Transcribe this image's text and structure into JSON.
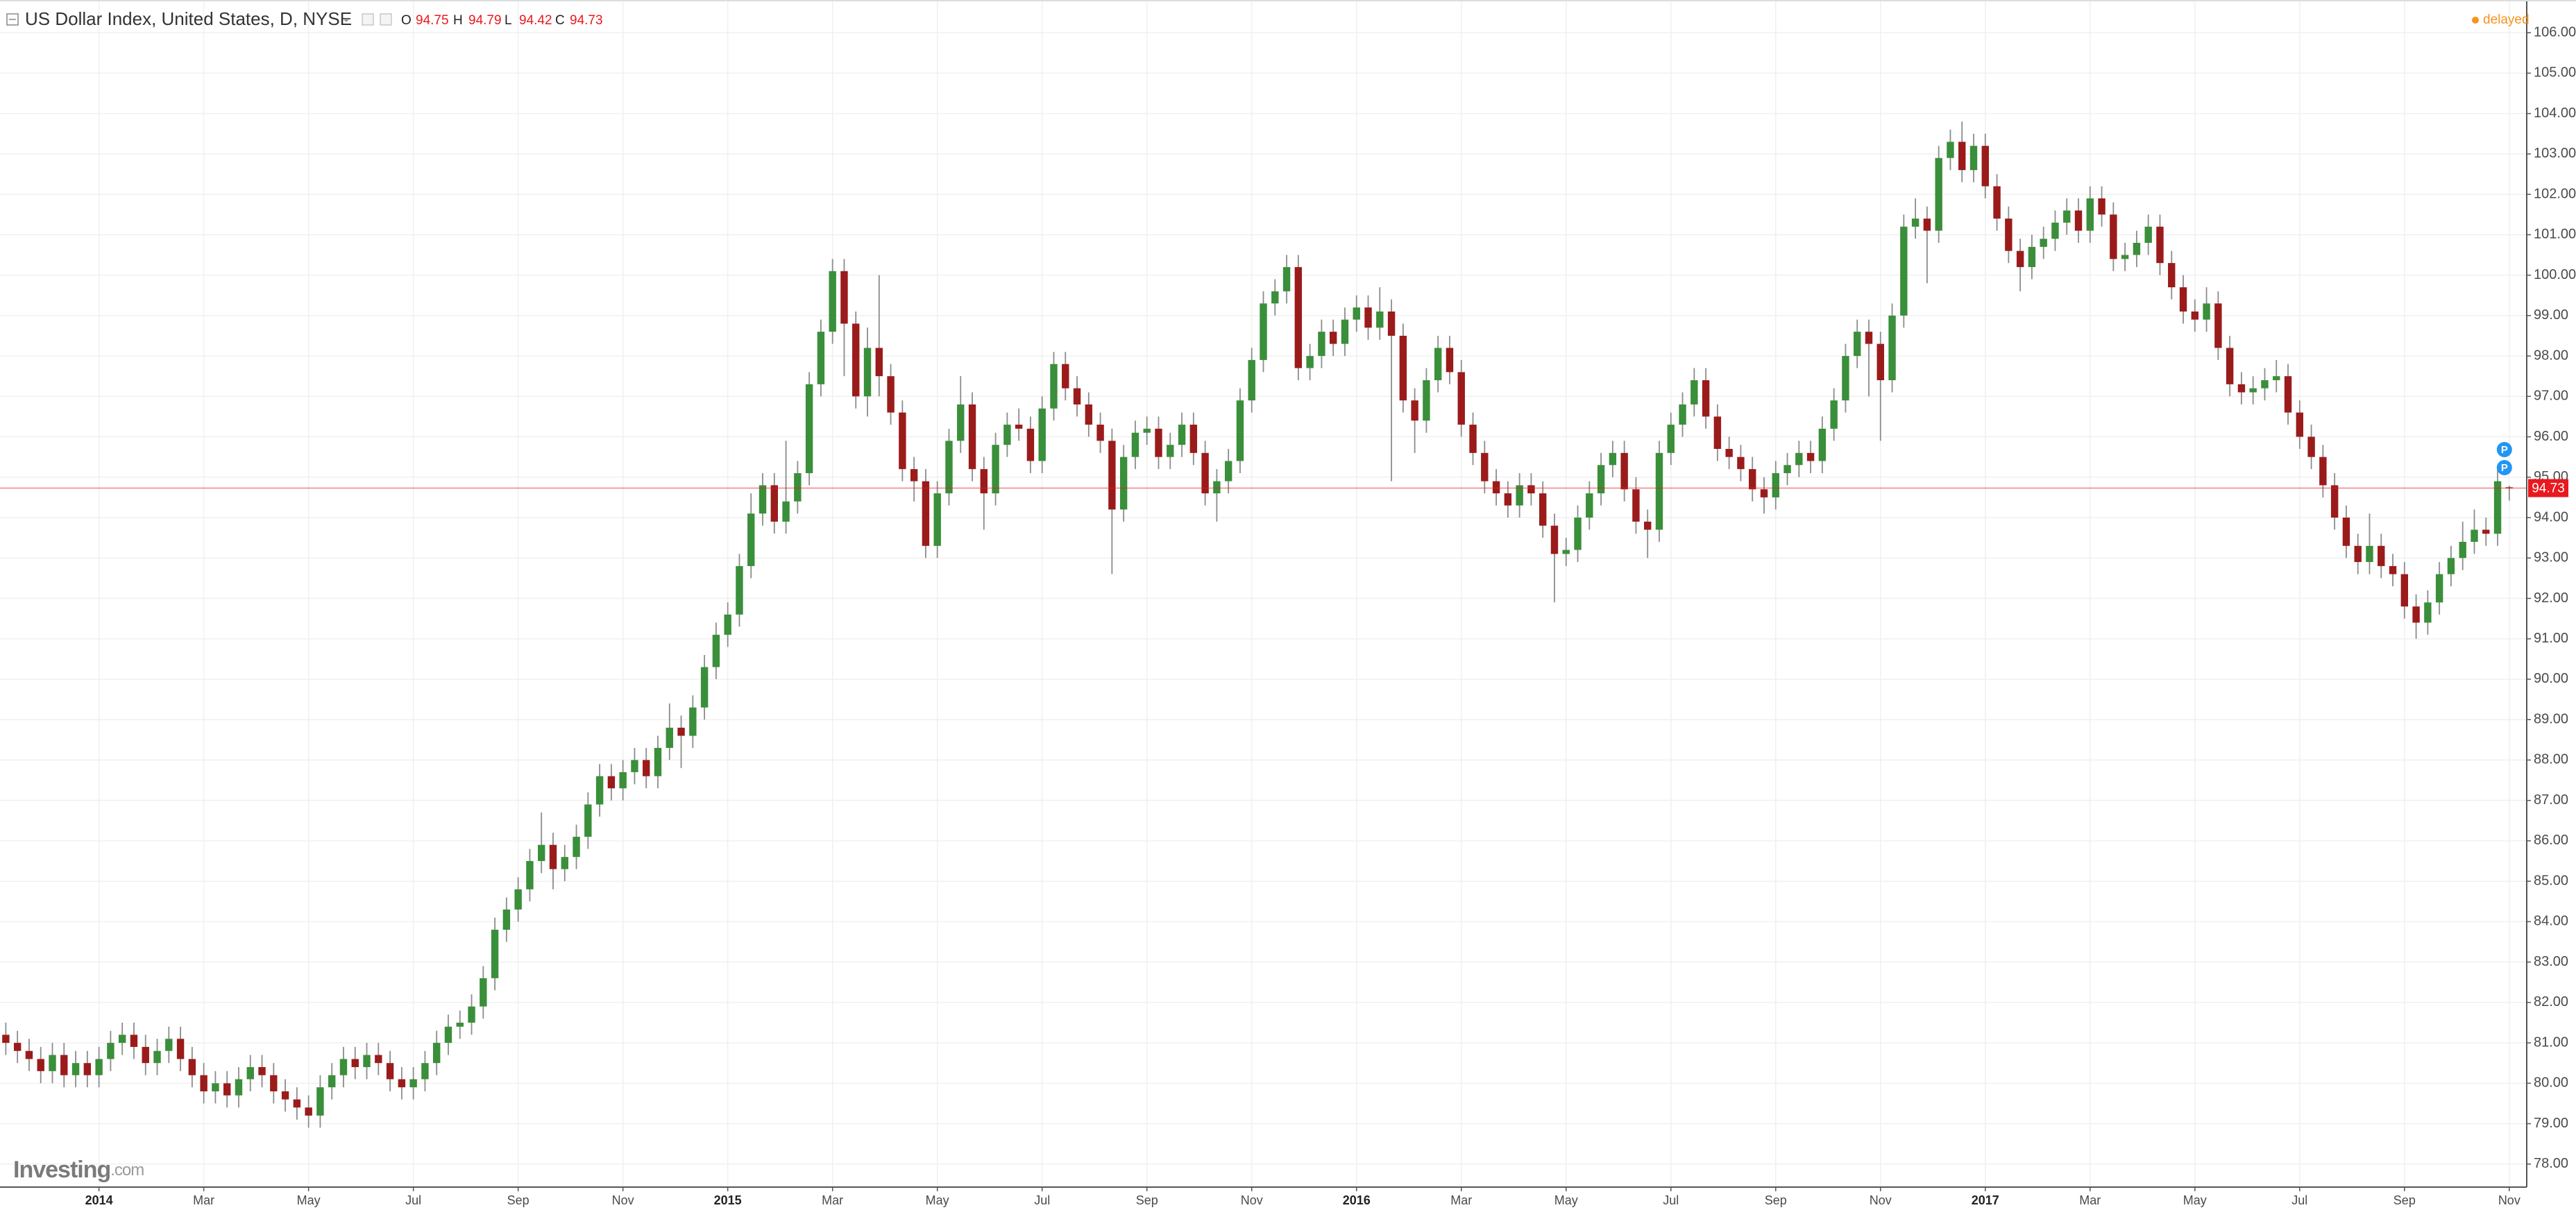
{
  "chart_data": {
    "type": "candlestick",
    "title": "US Dollar Index, United States, D, NYSE",
    "ohlc_labels": [
      "O",
      "H",
      "L",
      "C"
    ],
    "status": "delayed",
    "brand": "Investing",
    "brand_suffix": ".com",
    "event_markers": [
      "P",
      "P"
    ],
    "up_color": "#3a8f3a",
    "down_color": "#9b1b1b",
    "wick_color": "#8c8c8c",
    "last_price_color": "#e8191f",
    "grid": true,
    "ylim": [
      77.43,
      106.81
    ],
    "yticks": [
      {
        "value": 78,
        "label": "78.00"
      },
      {
        "value": 79,
        "label": "79.00"
      },
      {
        "value": 80,
        "label": "80.00"
      },
      {
        "value": 81,
        "label": "81.00"
      },
      {
        "value": 82,
        "label": "82.00"
      },
      {
        "value": 83,
        "label": "83.00"
      },
      {
        "value": 84,
        "label": "84.00"
      },
      {
        "value": 85,
        "label": "85.00"
      },
      {
        "value": 86,
        "label": "86.00"
      },
      {
        "value": 87,
        "label": "87.00"
      },
      {
        "value": 88,
        "label": "88.00"
      },
      {
        "value": 89,
        "label": "89.00"
      },
      {
        "value": 90,
        "label": "90.00"
      },
      {
        "value": 91,
        "label": "91.00"
      },
      {
        "value": 92,
        "label": "92.00"
      },
      {
        "value": 93,
        "label": "93.00"
      },
      {
        "value": 94,
        "label": "94.00"
      },
      {
        "value": 95,
        "label": "95.00"
      },
      {
        "value": 96,
        "label": "96.00"
      },
      {
        "value": 97,
        "label": "97.00"
      },
      {
        "value": 98,
        "label": "98.00"
      },
      {
        "value": 99,
        "label": "99.00"
      },
      {
        "value": 100,
        "label": "100.00"
      },
      {
        "value": 101,
        "label": "101.00"
      },
      {
        "value": 102,
        "label": "102.00"
      },
      {
        "value": 103,
        "label": "103.00"
      },
      {
        "value": 104,
        "label": "104.00"
      },
      {
        "value": 105,
        "label": "105.00"
      },
      {
        "value": 106,
        "label": "106.00"
      }
    ],
    "categories": [
      null,
      null,
      null,
      null,
      null,
      null,
      null,
      null,
      "2014",
      null,
      null,
      null,
      null,
      null,
      null,
      null,
      null,
      "Mar",
      null,
      null,
      null,
      null,
      null,
      null,
      null,
      null,
      "May",
      null,
      null,
      null,
      null,
      null,
      null,
      null,
      null,
      "Jul",
      null,
      null,
      null,
      null,
      null,
      null,
      null,
      null,
      "Sep",
      null,
      null,
      null,
      null,
      null,
      null,
      null,
      null,
      "Nov",
      null,
      null,
      null,
      null,
      null,
      null,
      null,
      null,
      "2015",
      null,
      null,
      null,
      null,
      null,
      null,
      null,
      null,
      "Mar",
      null,
      null,
      null,
      null,
      null,
      null,
      null,
      null,
      "May",
      null,
      null,
      null,
      null,
      null,
      null,
      null,
      null,
      "Jul",
      null,
      null,
      null,
      null,
      null,
      null,
      null,
      null,
      "Sep",
      null,
      null,
      null,
      null,
      null,
      null,
      null,
      null,
      "Nov",
      null,
      null,
      null,
      null,
      null,
      null,
      null,
      null,
      "2016",
      null,
      null,
      null,
      null,
      null,
      null,
      null,
      null,
      "Mar",
      null,
      null,
      null,
      null,
      null,
      null,
      null,
      null,
      "May",
      null,
      null,
      null,
      null,
      null,
      null,
      null,
      null,
      "Jul",
      null,
      null,
      null,
      null,
      null,
      null,
      null,
      null,
      "Sep",
      null,
      null,
      null,
      null,
      null,
      null,
      null,
      null,
      "Nov",
      null,
      null,
      null,
      null,
      null,
      null,
      null,
      null,
      "2017",
      null,
      null,
      null,
      null,
      null,
      null,
      null,
      null,
      "Mar",
      null,
      null,
      null,
      null,
      null,
      null,
      null,
      null,
      "May",
      null,
      null,
      null,
      null,
      null,
      null,
      null,
      null,
      "Jul",
      null,
      null,
      null,
      null,
      null,
      null,
      null,
      null,
      "Sep",
      null,
      null,
      null,
      null,
      null,
      null,
      null,
      null,
      "Nov"
    ],
    "open": [
      81.2,
      81.0,
      80.8,
      80.6,
      80.3,
      80.7,
      80.2,
      80.5,
      80.2,
      80.6,
      81.0,
      81.2,
      80.9,
      80.5,
      80.8,
      81.1,
      80.6,
      80.2,
      79.8,
      80.0,
      79.7,
      80.1,
      80.4,
      80.2,
      79.8,
      79.6,
      79.4,
      79.2,
      79.9,
      80.2,
      80.6,
      80.4,
      80.7,
      80.5,
      80.1,
      79.9,
      80.1,
      80.5,
      81.0,
      81.4,
      81.5,
      81.9,
      82.6,
      83.8,
      84.3,
      84.8,
      85.5,
      85.9,
      85.3,
      85.6,
      86.1,
      86.9,
      87.6,
      87.3,
      87.7,
      88.0,
      87.6,
      88.3,
      88.8,
      88.6,
      89.3,
      90.3,
      91.1,
      91.6,
      92.8,
      94.1,
      94.8,
      93.9,
      94.4,
      95.1,
      97.3,
      98.6,
      100.1,
      98.8,
      97.0,
      98.2,
      97.5,
      96.6,
      95.2,
      94.9,
      93.3,
      94.6,
      95.9,
      96.8,
      95.2,
      94.6,
      95.8,
      96.3,
      96.2,
      95.4,
      96.7,
      97.8,
      97.2,
      96.8,
      96.3,
      95.9,
      94.2,
      95.5,
      96.1,
      96.2,
      95.5,
      95.8,
      96.3,
      95.6,
      94.6,
      94.9,
      95.4,
      96.9,
      97.9,
      99.3,
      99.6,
      100.2,
      97.7,
      98.0,
      98.6,
      98.3,
      98.9,
      99.2,
      98.7,
      99.1,
      98.5,
      96.9,
      96.4,
      97.4,
      98.2,
      97.6,
      96.3,
      95.6,
      94.9,
      94.6,
      94.3,
      94.8,
      94.6,
      93.8,
      93.1,
      93.2,
      94.0,
      94.6,
      95.3,
      95.6,
      94.7,
      93.9,
      93.7,
      95.6,
      96.3,
      96.8,
      97.4,
      96.5,
      95.7,
      95.5,
      95.2,
      94.7,
      94.5,
      95.1,
      95.3,
      95.6,
      95.4,
      96.2,
      96.9,
      98.0,
      98.6,
      98.3,
      97.4,
      99.0,
      101.2,
      101.4,
      101.1,
      102.9,
      103.3,
      102.6,
      103.2,
      102.2,
      101.4,
      100.6,
      100.2,
      100.7,
      100.9,
      101.3,
      101.6,
      101.1,
      101.9,
      101.5,
      100.4,
      100.5,
      100.8,
      101.2,
      100.3,
      99.7,
      99.1,
      98.9,
      99.3,
      98.2,
      97.3,
      97.1,
      97.2,
      97.4,
      97.5,
      96.6,
      96.0,
      95.5,
      94.8,
      94.0,
      93.3,
      92.9,
      93.3,
      92.8,
      92.6,
      91.8,
      91.4,
      91.9,
      92.6,
      93.0,
      93.4,
      93.7,
      93.6,
      94.75
    ],
    "high": [
      81.5,
      81.3,
      81.1,
      80.9,
      81.0,
      81.0,
      80.8,
      80.8,
      80.9,
      81.3,
      81.5,
      81.5,
      81.2,
      81.1,
      81.4,
      81.4,
      80.9,
      80.5,
      80.3,
      80.3,
      80.4,
      80.7,
      80.7,
      80.5,
      80.1,
      79.9,
      79.7,
      80.2,
      80.5,
      80.9,
      80.9,
      81.0,
      81.0,
      80.8,
      80.4,
      80.4,
      80.8,
      81.3,
      81.7,
      81.8,
      82.2,
      82.9,
      84.1,
      84.6,
      85.1,
      85.8,
      86.7,
      86.2,
      85.9,
      86.4,
      87.2,
      87.9,
      87.9,
      88.0,
      88.3,
      88.3,
      88.6,
      89.4,
      89.1,
      89.6,
      90.6,
      91.4,
      91.9,
      93.1,
      94.6,
      95.1,
      95.1,
      95.9,
      95.4,
      97.6,
      98.9,
      100.4,
      100.4,
      99.1,
      98.7,
      100.0,
      97.8,
      96.9,
      95.5,
      95.2,
      94.9,
      96.2,
      97.5,
      97.1,
      95.5,
      96.1,
      96.6,
      96.7,
      96.5,
      97.0,
      98.1,
      98.1,
      97.5,
      97.1,
      96.6,
      96.2,
      95.8,
      96.4,
      96.5,
      96.5,
      96.1,
      96.6,
      96.6,
      95.9,
      95.2,
      95.7,
      97.2,
      98.2,
      99.6,
      99.9,
      100.5,
      100.5,
      98.3,
      98.9,
      98.9,
      99.2,
      99.5,
      99.5,
      99.7,
      99.4,
      98.8,
      97.2,
      97.7,
      98.5,
      98.5,
      97.9,
      96.6,
      95.9,
      95.2,
      94.9,
      95.1,
      95.1,
      94.9,
      94.1,
      93.5,
      94.3,
      94.9,
      95.6,
      95.9,
      95.9,
      95.0,
      94.2,
      95.9,
      96.6,
      97.1,
      97.7,
      97.7,
      96.8,
      96.0,
      95.8,
      95.5,
      95.0,
      95.4,
      95.6,
      95.9,
      95.9,
      96.5,
      97.2,
      98.3,
      98.9,
      98.9,
      98.6,
      99.3,
      101.5,
      101.9,
      101.7,
      103.2,
      103.6,
      103.8,
      103.5,
      103.5,
      102.5,
      101.7,
      100.9,
      101.0,
      101.2,
      101.6,
      101.9,
      101.9,
      102.2,
      102.2,
      101.8,
      100.8,
      101.1,
      101.5,
      101.5,
      100.6,
      100.0,
      99.4,
      99.7,
      99.6,
      98.5,
      97.6,
      97.5,
      97.7,
      97.9,
      97.8,
      96.9,
      96.3,
      95.8,
      95.1,
      94.3,
      93.6,
      94.1,
      93.6,
      93.1,
      92.9,
      92.1,
      92.2,
      92.9,
      93.3,
      93.9,
      94.2,
      94.0,
      95.2,
      94.79
    ],
    "low": [
      80.7,
      80.5,
      80.3,
      80.0,
      80.0,
      79.9,
      79.9,
      79.9,
      79.9,
      80.3,
      80.7,
      80.6,
      80.2,
      80.2,
      80.5,
      80.3,
      79.9,
      79.5,
      79.5,
      79.4,
      79.4,
      79.8,
      79.9,
      79.5,
      79.3,
      79.1,
      78.9,
      78.9,
      79.6,
      79.9,
      80.1,
      80.1,
      80.2,
      79.8,
      79.6,
      79.6,
      79.8,
      80.2,
      80.7,
      81.1,
      81.2,
      81.6,
      82.3,
      83.5,
      84.0,
      84.5,
      85.2,
      84.8,
      85.0,
      85.3,
      85.8,
      86.6,
      87.0,
      87.0,
      87.4,
      87.3,
      87.3,
      88.0,
      87.8,
      88.3,
      89.0,
      90.0,
      90.8,
      91.3,
      92.5,
      93.8,
      93.6,
      93.6,
      94.1,
      94.8,
      97.0,
      98.3,
      97.5,
      96.7,
      96.5,
      97.0,
      96.3,
      94.9,
      94.4,
      93.0,
      93.0,
      94.3,
      95.6,
      94.9,
      93.7,
      94.3,
      95.5,
      95.9,
      95.1,
      95.1,
      96.4,
      96.9,
      96.5,
      96.0,
      95.6,
      92.6,
      93.9,
      95.2,
      95.8,
      95.2,
      95.2,
      95.5,
      95.3,
      94.3,
      93.9,
      94.6,
      95.1,
      96.6,
      97.6,
      99.0,
      99.3,
      97.4,
      97.4,
      97.7,
      98.0,
      98.0,
      98.6,
      98.4,
      98.4,
      94.9,
      96.6,
      95.6,
      96.1,
      97.1,
      97.3,
      96.0,
      95.3,
      94.6,
      94.3,
      94.0,
      94.0,
      94.3,
      93.5,
      91.9,
      92.8,
      92.9,
      93.7,
      94.3,
      95.0,
      94.4,
      93.6,
      93.0,
      93.4,
      95.3,
      96.0,
      96.5,
      96.2,
      95.4,
      95.2,
      94.9,
      94.4,
      94.1,
      94.2,
      94.8,
      95.0,
      95.1,
      95.1,
      95.9,
      96.6,
      97.7,
      97.0,
      95.9,
      97.1,
      98.7,
      100.9,
      99.8,
      100.8,
      102.6,
      102.3,
      102.3,
      101.9,
      101.1,
      100.3,
      99.6,
      99.9,
      100.4,
      100.6,
      101.0,
      100.8,
      100.8,
      101.2,
      100.1,
      100.1,
      100.2,
      100.5,
      100.0,
      99.4,
      98.8,
      98.6,
      98.6,
      97.9,
      97.0,
      96.8,
      96.8,
      96.9,
      97.1,
      96.3,
      95.7,
      95.2,
      94.5,
      93.7,
      93.0,
      92.6,
      92.6,
      92.5,
      92.3,
      91.5,
      91.0,
      91.1,
      91.6,
      92.3,
      92.7,
      93.1,
      93.3,
      93.3,
      94.42
    ],
    "close": [
      81.0,
      80.8,
      80.6,
      80.3,
      80.7,
      80.2,
      80.5,
      80.2,
      80.6,
      81.0,
      81.2,
      80.9,
      80.5,
      80.8,
      81.1,
      80.6,
      80.2,
      79.8,
      80.0,
      79.7,
      80.1,
      80.4,
      80.2,
      79.8,
      79.6,
      79.4,
      79.2,
      79.9,
      80.2,
      80.6,
      80.4,
      80.7,
      80.5,
      80.1,
      79.9,
      80.1,
      80.5,
      81.0,
      81.4,
      81.5,
      81.9,
      82.6,
      83.8,
      84.3,
      84.8,
      85.5,
      85.9,
      85.3,
      85.6,
      86.1,
      86.9,
      87.6,
      87.3,
      87.7,
      88.0,
      87.6,
      88.3,
      88.8,
      88.6,
      89.3,
      90.3,
      91.1,
      91.6,
      92.8,
      94.1,
      94.8,
      93.9,
      94.4,
      95.1,
      97.3,
      98.6,
      100.1,
      98.8,
      97.0,
      98.2,
      97.5,
      96.6,
      95.2,
      94.9,
      93.3,
      94.6,
      95.9,
      96.8,
      95.2,
      94.6,
      95.8,
      96.3,
      96.2,
      95.4,
      96.7,
      97.8,
      97.2,
      96.8,
      96.3,
      95.9,
      94.2,
      95.5,
      96.1,
      96.2,
      95.5,
      95.8,
      96.3,
      95.6,
      94.6,
      94.9,
      95.4,
      96.9,
      97.9,
      99.3,
      99.6,
      100.2,
      97.7,
      98.0,
      98.6,
      98.3,
      98.9,
      99.2,
      98.7,
      99.1,
      98.5,
      96.9,
      96.4,
      97.4,
      98.2,
      97.6,
      96.3,
      95.6,
      94.9,
      94.6,
      94.3,
      94.8,
      94.6,
      93.8,
      93.1,
      93.2,
      94.0,
      94.6,
      95.3,
      95.6,
      94.7,
      93.9,
      93.7,
      95.6,
      96.3,
      96.8,
      97.4,
      96.5,
      95.7,
      95.5,
      95.2,
      94.7,
      94.5,
      95.1,
      95.3,
      95.6,
      95.4,
      96.2,
      96.9,
      98.0,
      98.6,
      98.3,
      97.4,
      99.0,
      101.2,
      101.4,
      101.1,
      102.9,
      103.3,
      102.6,
      103.2,
      102.2,
      101.4,
      100.6,
      100.2,
      100.7,
      100.9,
      101.3,
      101.6,
      101.1,
      101.9,
      101.5,
      100.4,
      100.5,
      100.8,
      101.2,
      100.3,
      99.7,
      99.1,
      98.9,
      99.3,
      98.2,
      97.3,
      97.1,
      97.2,
      97.4,
      97.5,
      96.6,
      96.0,
      95.5,
      94.8,
      94.0,
      93.3,
      92.9,
      93.3,
      92.8,
      92.6,
      91.8,
      91.4,
      91.9,
      92.6,
      93.0,
      93.4,
      93.7,
      93.6,
      94.9,
      94.73
    ]
  }
}
